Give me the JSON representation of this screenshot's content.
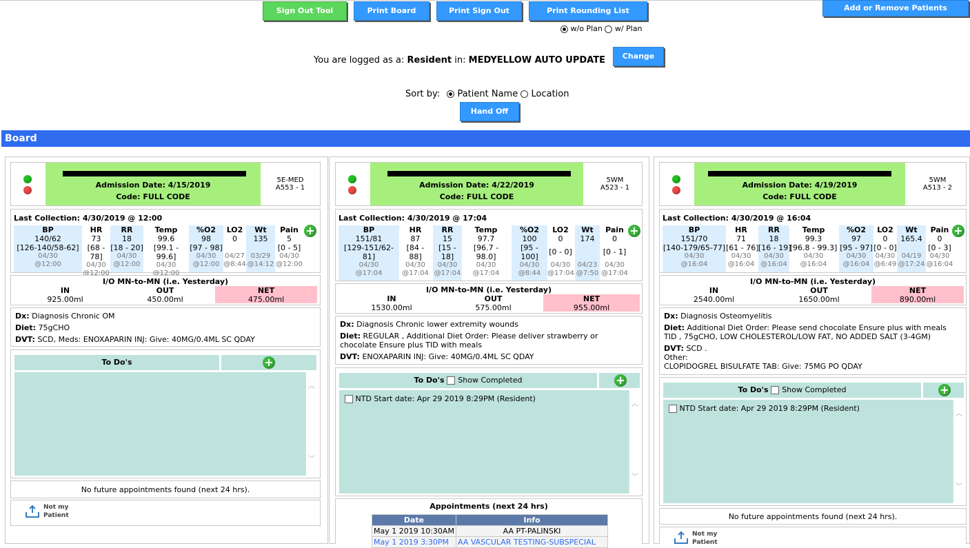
{
  "toolbar": {
    "sign_out_tool": "Sign Out Tool",
    "print_board": "Print Board",
    "print_sign_out": "Print Sign Out",
    "print_rounding_list": "Print Rounding List",
    "add_remove_patients": "Add or Remove Patients",
    "wo_plan": "w/o Plan",
    "w_plan": "w/ Plan"
  },
  "login": {
    "prefix": "You are logged as a:",
    "role": "Resident",
    "in_label": "in:",
    "unit": "MEDYELLOW AUTO UPDATE",
    "change": "Change"
  },
  "sort": {
    "label": "Sort by:",
    "patient_name": "Patient Name",
    "location": "Location",
    "hand_off": "Hand Off"
  },
  "board_title": "Board",
  "labels": {
    "io_title": "I/O MN-to-MN (i.e. Yesterday)",
    "in": "IN",
    "out": "OUT",
    "net": "NET",
    "dx": "Dx:",
    "diet": "Diet:",
    "dvt": "DVT:",
    "other": "Other:",
    "todos": "To Do's",
    "show_completed": "Show Completed",
    "no_appts": "No future appointments found (next 24 hrs).",
    "appts_title": "Appointments (next 24 hrs)",
    "appt_date": "Date",
    "appt_info": "Info",
    "not_my_patient_1": "Not my",
    "not_my_patient_2": "Patient",
    "vitals_headers": [
      "BP",
      "HR",
      "RR",
      "Temp",
      "%O2",
      "LO2",
      "Wt",
      "Pain"
    ]
  },
  "patients": [
    {
      "admission": "Admission Date: 4/15/2019",
      "code": "Code: FULL CODE",
      "unit": "5E-MED",
      "room": "A553 - 1",
      "last_collection": "Last Collection: 4/30/2019 @ 12:00",
      "bp": [
        "140/62",
        "[126-140/58-62]",
        "04/30",
        "@12:00"
      ],
      "hr": [
        "73",
        "[68 - 78]",
        "04/30",
        "@12:00"
      ],
      "rr": [
        "18",
        "[18 - 20]",
        "04/30",
        "@12:00"
      ],
      "temp": [
        "99.6",
        "[99.1 - 99.6]",
        "04/30",
        "@12:00"
      ],
      "o2": [
        "98",
        "[97 - 98]",
        "04/30",
        "@12:00"
      ],
      "lo2": [
        "0",
        "",
        "04/27",
        "@8:44"
      ],
      "wt": [
        "135",
        "",
        "03/29",
        "@14:12"
      ],
      "pain": [
        "5",
        "[0 - 5]",
        "04/30",
        "@12:00"
      ],
      "io_in": "925.00ml",
      "io_out": "450.00ml",
      "io_net": "475.00ml",
      "dx": "Diagnosis Chronic OM",
      "diet": "75gCHO",
      "dvt": "SCD, Meds: ENOXAPARIN INJ: Give: 40MG/0.4ML SC QDAY"
    },
    {
      "admission": "Admission Date: 4/22/2019",
      "code": "Code: FULL CODE",
      "unit": "5WM",
      "room": "A523 - 1",
      "last_collection": "Last Collection: 4/30/2019 @ 17:04",
      "bp": [
        "151/81",
        "[129-151/62-",
        "81]",
        "04/30",
        "@17:04"
      ],
      "hr": [
        "87",
        "[84 -",
        "88]",
        "04/30",
        "@17:04"
      ],
      "rr": [
        "15",
        "[15 -",
        "18]",
        "04/30",
        "@17:04"
      ],
      "temp": [
        "97.7",
        "[96.7 -",
        "98.0]",
        "04/30",
        "@17:04"
      ],
      "o2": [
        "100",
        "[95 -",
        "100]",
        "04/30",
        "@8:44"
      ],
      "lo2": [
        "0",
        "[0 - 0]",
        "04/30",
        "@17:04"
      ],
      "wt": [
        "174",
        "",
        "04/23",
        "@7:50"
      ],
      "pain": [
        "0",
        "[0 - 1]",
        "04/30",
        "@17:04"
      ],
      "io_in": "1530.00ml",
      "io_out": "575.00ml",
      "io_net": "955.00ml",
      "dx": "Diagnosis Chronic lower extremity wounds",
      "diet": "REGULAR , Additional Diet Order: Please deliver strawberry or chocolate Ensure plus TID with meals",
      "dvt": "ENOXAPARIN INJ: Give: 40MG/0.4ML SC QDAY",
      "todo": "NTD Start date: Apr 29 2019 8:29PM (Resident)",
      "appointments": [
        {
          "date": "May 1 2019 10:30AM",
          "info": "AA PT-PALINSKI"
        },
        {
          "date": "May 1 2019 3:30PM",
          "info": "AA VASCULAR TESTING-SUBSPECIAL"
        }
      ]
    },
    {
      "admission": "Admission Date: 4/19/2019",
      "code": "Code: FULL CODE",
      "unit": "5WM",
      "room": "A513 - 2",
      "last_collection": "Last Collection: 4/30/2019 @ 16:04",
      "bp": [
        "151/70",
        "[140-179/65-77]",
        "04/30",
        "@16:04"
      ],
      "hr": [
        "71",
        "[61 - 76]",
        "04/30",
        "@16:04"
      ],
      "rr": [
        "18",
        "[16 - 19]",
        "04/30",
        "@16:04"
      ],
      "temp": [
        "99.3",
        "[96.8 - 99.3]",
        "04/30",
        "@16:04"
      ],
      "o2": [
        "97",
        "[95 - 97]",
        "04/30",
        "@16:04"
      ],
      "lo2": [
        "0",
        "[0 - 0]",
        "04/30",
        "@6:49"
      ],
      "wt": [
        "165.4",
        "",
        "04/19",
        "@17:24"
      ],
      "pain": [
        "0",
        "[0 - 3]",
        "04/30",
        "@16:04"
      ],
      "io_in": "2540.00ml",
      "io_out": "1650.00ml",
      "io_net": "890.00ml",
      "dx": "Diagnosis Osteomyelitis",
      "diet": "Additional Diet Order: Please send chocolate Ensure plus with meals TID , 75gCHO, LOW CHOLESTEROL/LOW FAT, NO ADDED SALT (3-4GM)",
      "dvt": "SCD .",
      "other": "CLOPIDOGREL BISULFATE TAB: Give: 75MG PO QDAY",
      "todo": "NTD Start date: Apr 29 2019 8:29PM (Resident)"
    }
  ]
}
